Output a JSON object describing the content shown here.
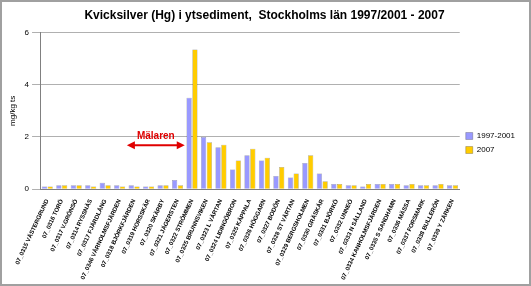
{
  "chart_data": {
    "type": "bar",
    "title": "Kvicksilver (Hg) i ytsediment,  Stockholms län 1997/2001 - 2007",
    "y_label": "mg/kg ts",
    "categories": [
      "07_0315 VÄSTERGRUND",
      "07_0316 TORÖ",
      "07_0317 V.GRÖNSÖ",
      "07_0314 RYSSNÄS",
      "07_0317 FJÄRDLÅNG",
      "07_0346 VÅRNOLMSFJÄRDEN",
      "07_0318 BJÖRKFJÄRDEN",
      "07_0319 HORSSKÄR",
      "07_0320 SKÄRBY",
      "07_0321 JÄGERSTEN",
      "07_0322 STRÖMMEN",
      "07_0325 BRUNNSVIKEN",
      "07_0323 L VÄRTAN",
      "07_0324 LIDINGÖBRON",
      "07_0325 KÄPPALA",
      "07_0326 HÖGGARN",
      "07_0327 BODÖN",
      "07_0328 ST VÄRTAN",
      "07_0329 BERGSHOLMEN",
      "07_0330 GRÄSKÄR",
      "07_0331 BJÖRKÖ",
      "07_0332 UNNEÖ",
      "07_0333 N SÅLLAND",
      "07_0334 KANHOLMSFJÄRDEN",
      "07_0335 S SANDHAMN",
      "07_0336 MÄSSA",
      "07_0337 FORSMARK",
      "07_0338 BULLERÖN",
      "07_0339 Y ZÄRKEN"
    ],
    "series": [
      {
        "name": "1997-2001",
        "color": "#9999ff",
        "values": [
          0.1,
          0.15,
          0.15,
          0.15,
          0.25,
          0.15,
          0.15,
          0.1,
          0.15,
          0.35,
          3.5,
          2.0,
          1.6,
          0.75,
          1.3,
          1.1,
          0.5,
          0.45,
          1.0,
          0.6,
          0.2,
          0.15,
          0.1,
          0.2,
          0.2,
          0.15,
          0.15,
          0.15,
          0.15
        ]
      },
      {
        "name": "2007",
        "color": "#ffcc00",
        "values": [
          0.1,
          0.15,
          0.15,
          0.1,
          0.15,
          0.1,
          0.1,
          0.1,
          0.15,
          0.15,
          5.35,
          1.8,
          1.7,
          1.1,
          1.55,
          1.2,
          0.85,
          0.6,
          1.3,
          0.3,
          0.2,
          0.15,
          0.2,
          0.2,
          0.2,
          0.2,
          0.15,
          0.2,
          0.15
        ]
      }
    ],
    "ylim": [
      0,
      6
    ],
    "yticks": [
      0,
      2,
      4,
      6
    ],
    "grid": true,
    "legend": "right",
    "annotations": [
      {
        "text": "Mälaren",
        "start": "07_0318 BJÖRKFJÄRDEN",
        "end": "07_0321 JÄGERSTEN",
        "color": "#e00000"
      }
    ]
  }
}
